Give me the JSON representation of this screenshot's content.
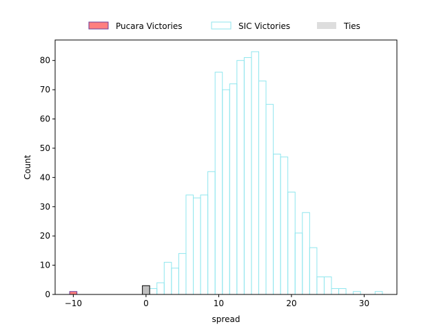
{
  "chart_data": {
    "type": "bar",
    "xlabel": "spread",
    "ylabel": "Count",
    "xlim": [
      -12.5,
      34.5
    ],
    "ylim": [
      0,
      87
    ],
    "xticks": [
      -10,
      0,
      10,
      20,
      30
    ],
    "xtick_labels": [
      "−10",
      "0",
      "10",
      "20",
      "30"
    ],
    "yticks": [
      0,
      10,
      20,
      30,
      40,
      50,
      60,
      70,
      80
    ],
    "bin_width": 1,
    "legend_placement": "top-center, outside plot",
    "series": [
      {
        "name": "Pucara Victories",
        "color": "#ff7f7f",
        "edge_color": "#6a3d9a",
        "bins": [
          {
            "x": -10,
            "count": 1
          }
        ]
      },
      {
        "name": "SIC Victories",
        "color": "none",
        "edge_color": "#8fe6ee",
        "bins": [
          {
            "x": 1,
            "count": 2
          },
          {
            "x": 2,
            "count": 4
          },
          {
            "x": 3,
            "count": 11
          },
          {
            "x": 4,
            "count": 9
          },
          {
            "x": 5,
            "count": 14
          },
          {
            "x": 6,
            "count": 34
          },
          {
            "x": 7,
            "count": 33
          },
          {
            "x": 8,
            "count": 34
          },
          {
            "x": 9,
            "count": 42
          },
          {
            "x": 10,
            "count": 76
          },
          {
            "x": 11,
            "count": 70
          },
          {
            "x": 12,
            "count": 72
          },
          {
            "x": 13,
            "count": 80
          },
          {
            "x": 14,
            "count": 81
          },
          {
            "x": 15,
            "count": 83
          },
          {
            "x": 16,
            "count": 73
          },
          {
            "x": 17,
            "count": 65
          },
          {
            "x": 18,
            "count": 48
          },
          {
            "x": 19,
            "count": 47
          },
          {
            "x": 20,
            "count": 35
          },
          {
            "x": 21,
            "count": 21
          },
          {
            "x": 22,
            "count": 28
          },
          {
            "x": 23,
            "count": 16
          },
          {
            "x": 24,
            "count": 6
          },
          {
            "x": 25,
            "count": 6
          },
          {
            "x": 26,
            "count": 2
          },
          {
            "x": 27,
            "count": 2
          },
          {
            "x": 29,
            "count": 1
          },
          {
            "x": 32,
            "count": 1
          }
        ]
      },
      {
        "name": "Ties",
        "color": "#c0c0c0",
        "edge_color": "#000000",
        "bins": [
          {
            "x": 0,
            "count": 3
          }
        ]
      }
    ],
    "legend_entries": [
      {
        "label": "Pucara Victories",
        "fill": "#ff7f7f",
        "stroke": "#6a3d9a"
      },
      {
        "label": "SIC Victories",
        "fill": "#ffffff",
        "stroke": "#8fe6ee"
      },
      {
        "label": "Ties",
        "fill": "#dddddd",
        "stroke": "none"
      }
    ]
  }
}
